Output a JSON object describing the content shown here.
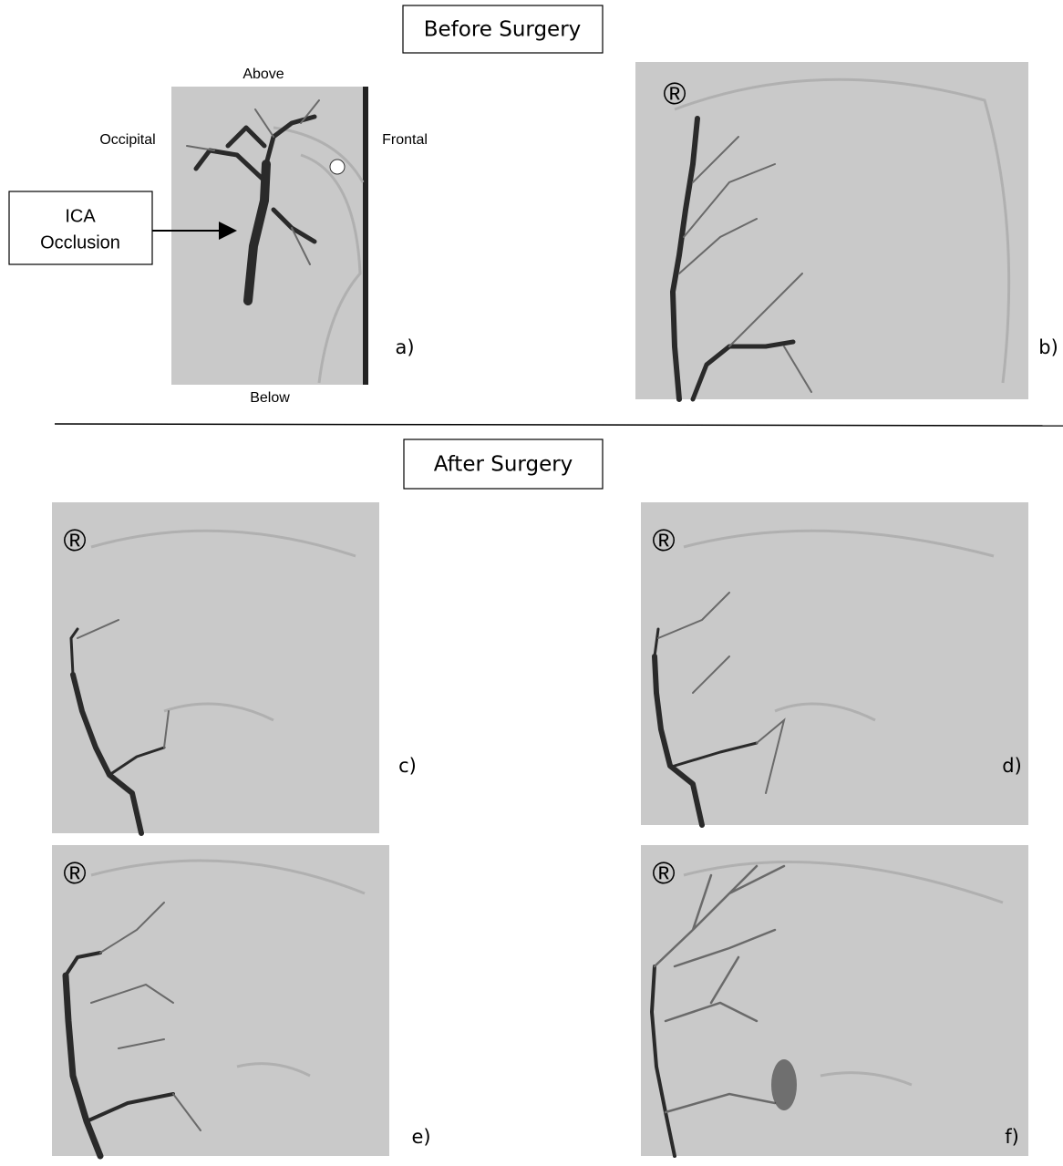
{
  "headers": {
    "before": "Before Surgery",
    "after": "After Surgery"
  },
  "panel_a": {
    "above": "Above",
    "below": "Below",
    "left": "Occipital",
    "right": "Frontal",
    "callout": [
      "ICA",
      "Occlusion"
    ]
  },
  "labels": [
    "a)",
    "b)",
    "c)",
    "d)",
    "e)",
    "f)"
  ],
  "marker": "®"
}
